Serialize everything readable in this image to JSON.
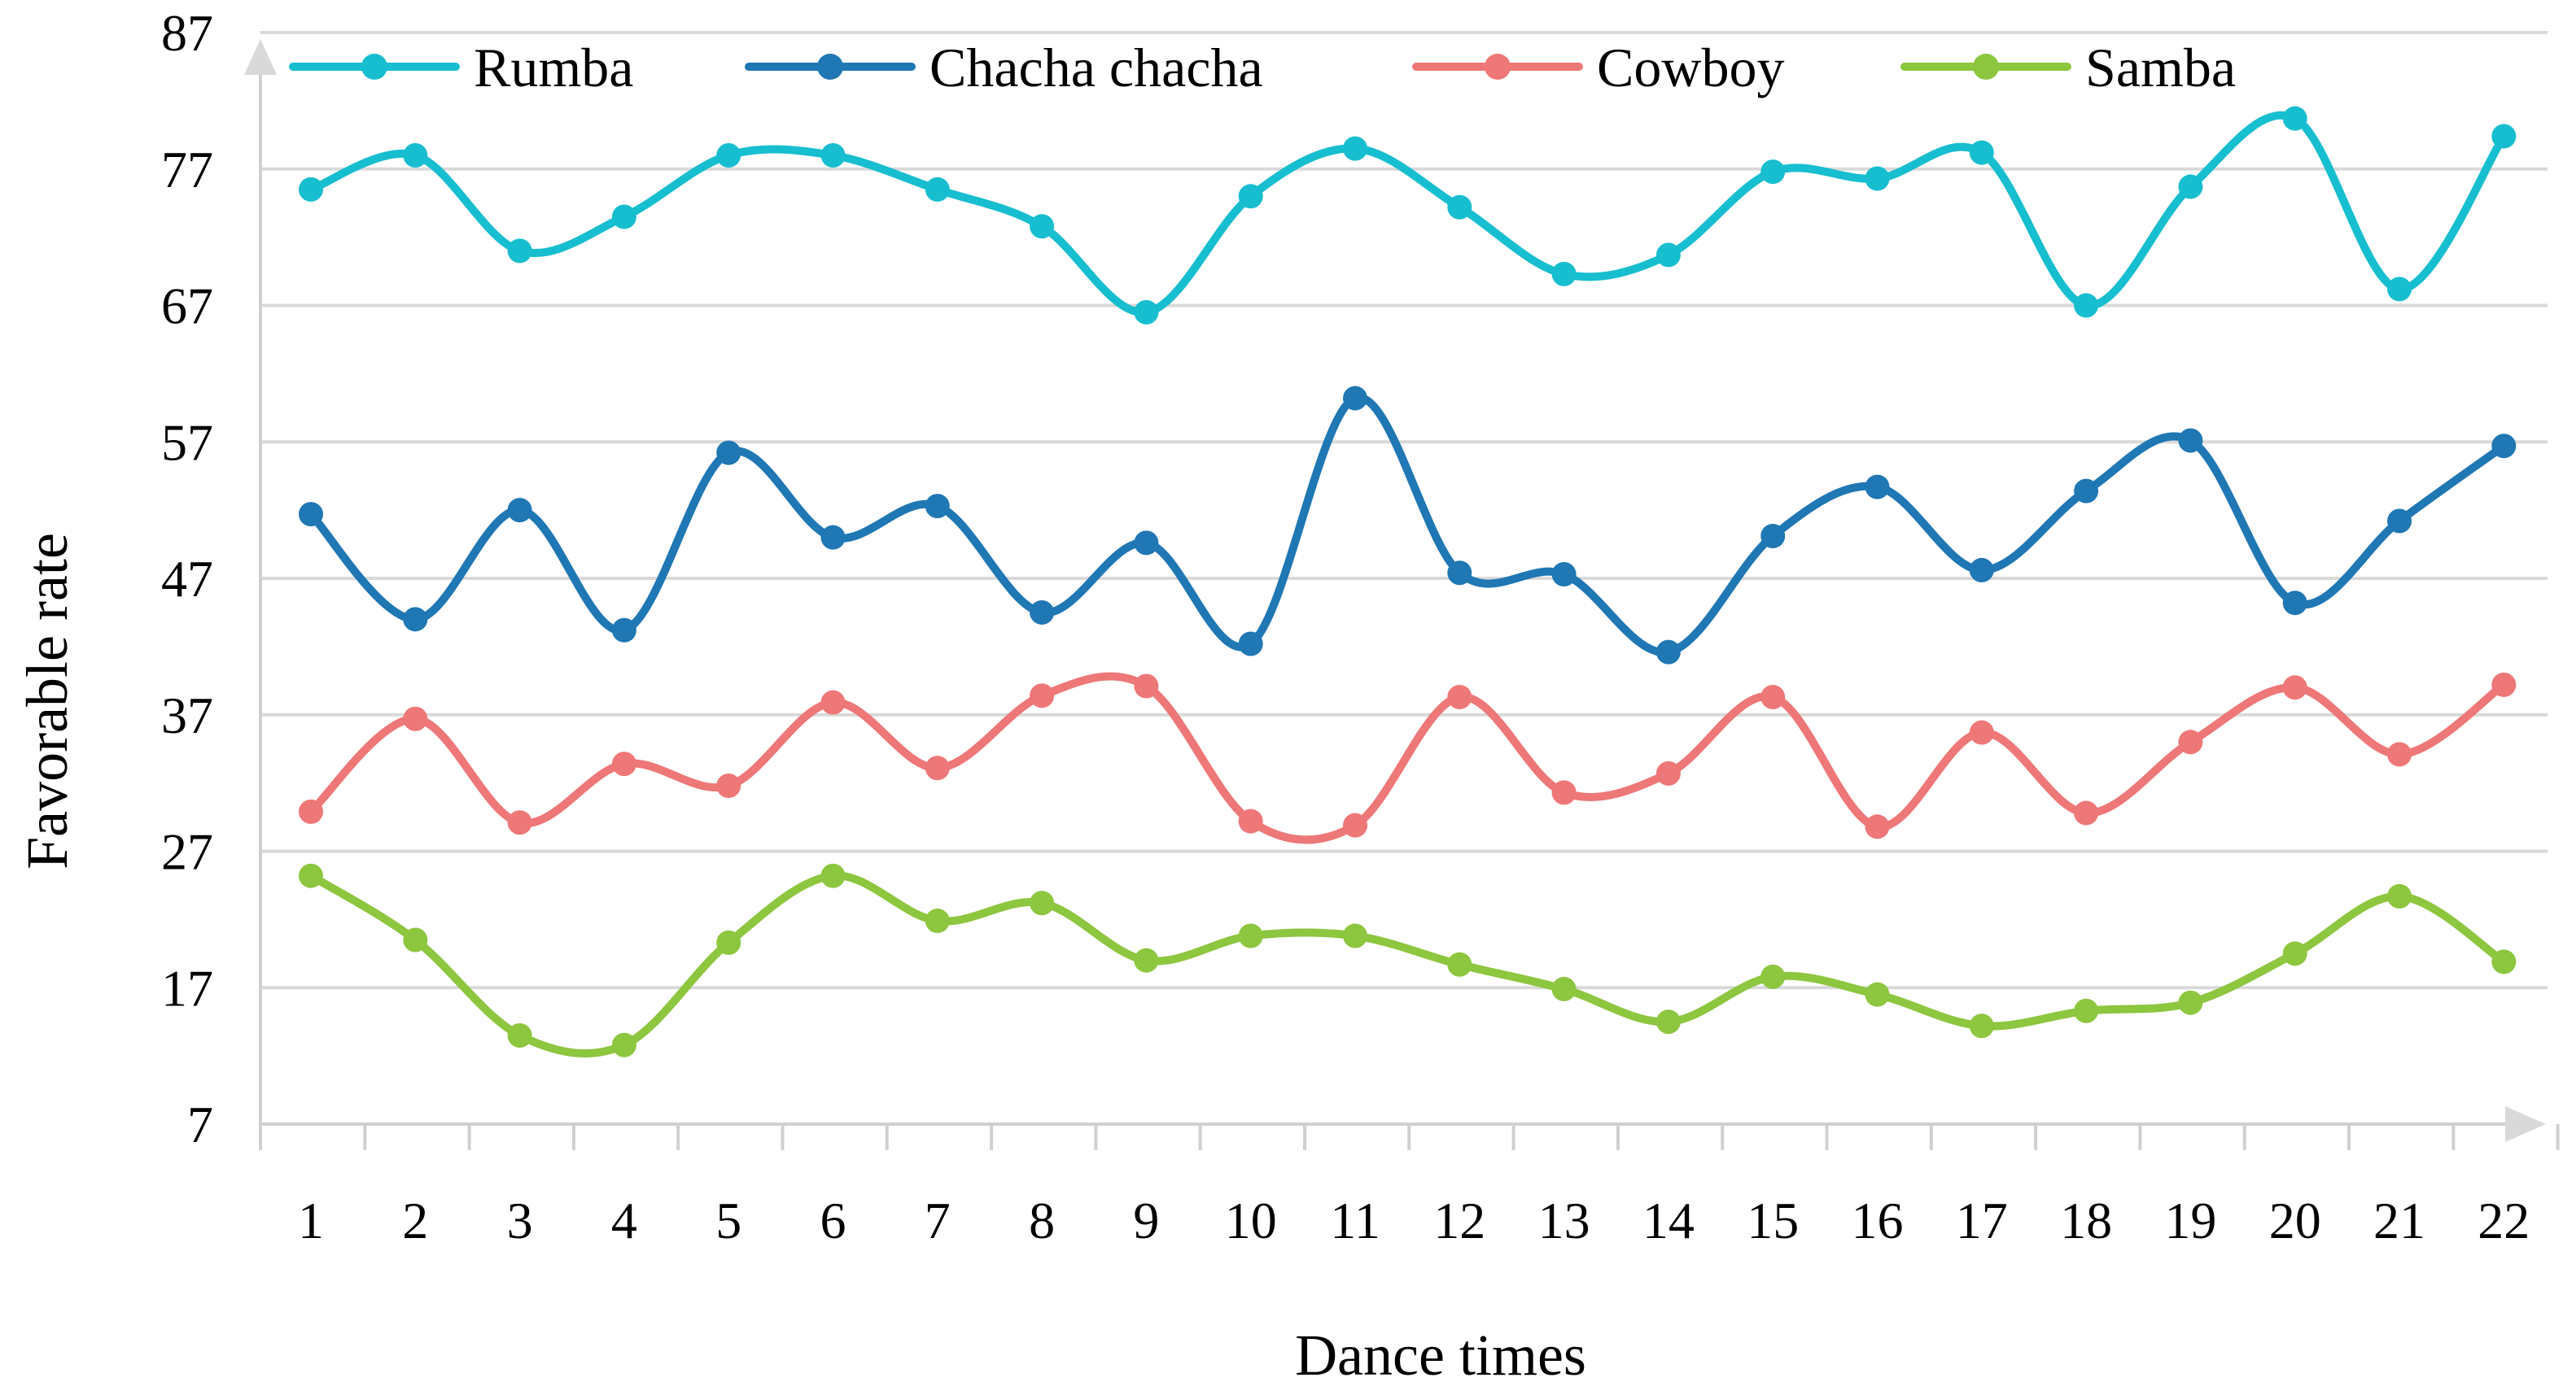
{
  "chart_data": {
    "type": "line",
    "title": "",
    "xlabel": "Dance times",
    "ylabel": "Favorable rate",
    "categories": [
      "1",
      "2",
      "3",
      "4",
      "5",
      "6",
      "7",
      "8",
      "9",
      "10",
      "11",
      "12",
      "13",
      "14",
      "15",
      "16",
      "17",
      "18",
      "19",
      "20",
      "21",
      "22"
    ],
    "ylim": [
      7,
      87
    ],
    "yticks": [
      "7",
      "17",
      "27",
      "37",
      "47",
      "57",
      "67",
      "77",
      "87"
    ],
    "grid": "horizontal",
    "legend": "top",
    "series": [
      {
        "name": "Rumba",
        "color": "#17becf",
        "values": [
          75.5,
          78,
          71,
          73.5,
          78,
          78,
          75.5,
          72.8,
          66.5,
          75,
          78.5,
          74.2,
          69.3,
          70.7,
          76.8,
          76.3,
          78.2,
          67,
          75.7,
          80.7,
          68.2,
          79.4
        ]
      },
      {
        "name": "Chacha chacha",
        "color": "#1f77b4",
        "values": [
          51.7,
          44,
          52,
          43.2,
          56.2,
          50,
          52.3,
          44.5,
          49.6,
          42.2,
          60.2,
          47.4,
          47.3,
          41.6,
          50.1,
          53.7,
          47.6,
          53.4,
          57.1,
          45.2,
          51.2,
          56.7
        ]
      },
      {
        "name": "Cowboy",
        "color": "#ee7777",
        "values": [
          29.9,
          36.7,
          29.1,
          33.4,
          31.8,
          37.9,
          33.1,
          38.4,
          39.1,
          29.2,
          28.9,
          38.3,
          31.3,
          32.7,
          38.3,
          28.8,
          35.7,
          29.8,
          35,
          39,
          34.1,
          39.2
        ]
      },
      {
        "name": "Samba",
        "color": "#8dc63f",
        "values": [
          25.2,
          20.5,
          13.5,
          12.8,
          20.3,
          25.2,
          21.9,
          23.2,
          19,
          20.8,
          20.8,
          18.7,
          16.9,
          14.5,
          17.8,
          16.5,
          14.2,
          15.3,
          15.9,
          19.5,
          23.7,
          18.9
        ]
      }
    ]
  }
}
